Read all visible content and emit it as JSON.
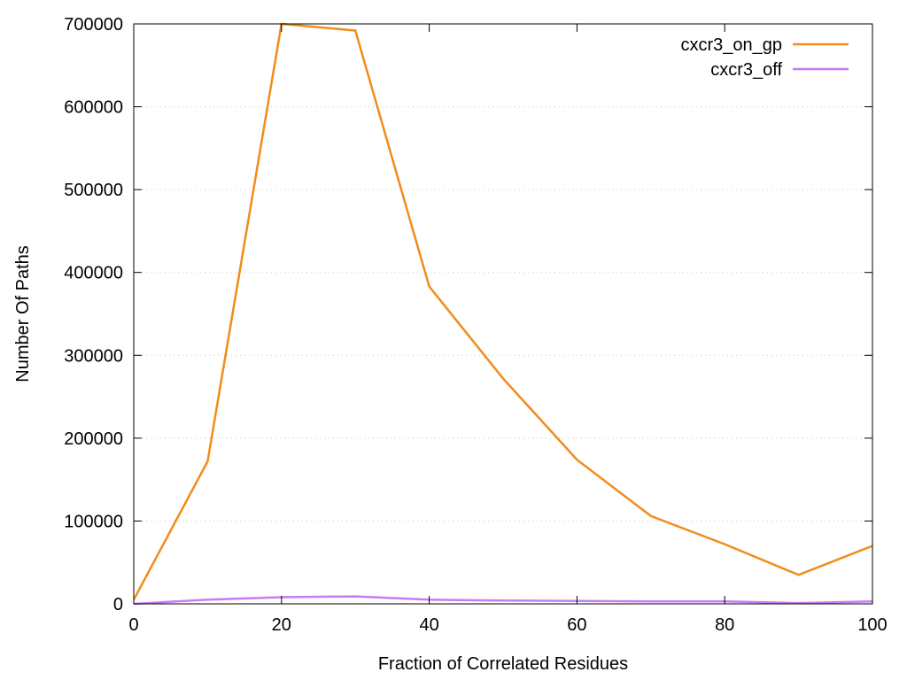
{
  "chart_data": {
    "type": "line",
    "title": "",
    "xlabel": "Fraction of Correlated Residues",
    "ylabel": "Number Of Paths",
    "xlim": [
      0,
      100
    ],
    "ylim": [
      0,
      700000
    ],
    "x_ticks": [
      0,
      20,
      40,
      60,
      80,
      100
    ],
    "x_tick_labels": [
      "0",
      "20",
      "40",
      "60",
      "80",
      "100"
    ],
    "y_ticks": [
      0,
      100000,
      200000,
      300000,
      400000,
      500000,
      600000,
      700000
    ],
    "y_tick_labels": [
      "0",
      "100000",
      "200000",
      "300000",
      "400000",
      "500000",
      "600000",
      "700000"
    ],
    "grid": "horizontal-dotted",
    "legend_position": "top-right",
    "series": [
      {
        "name": "cxcr3_on_gp",
        "color": "#f28c1a",
        "x": [
          0,
          10,
          20,
          30,
          40,
          50,
          60,
          70,
          80,
          90,
          100
        ],
        "y": [
          5000,
          172000,
          700000,
          692000,
          383000,
          272000,
          174000,
          106000,
          72000,
          35000,
          70000
        ]
      },
      {
        "name": "cxcr3_off",
        "color": "#c57cf5",
        "x": [
          0,
          10,
          20,
          30,
          40,
          50,
          60,
          70,
          80,
          90,
          100
        ],
        "y": [
          0,
          5000,
          8000,
          9000,
          5000,
          4000,
          3500,
          3000,
          3000,
          1000,
          3000
        ]
      }
    ]
  }
}
